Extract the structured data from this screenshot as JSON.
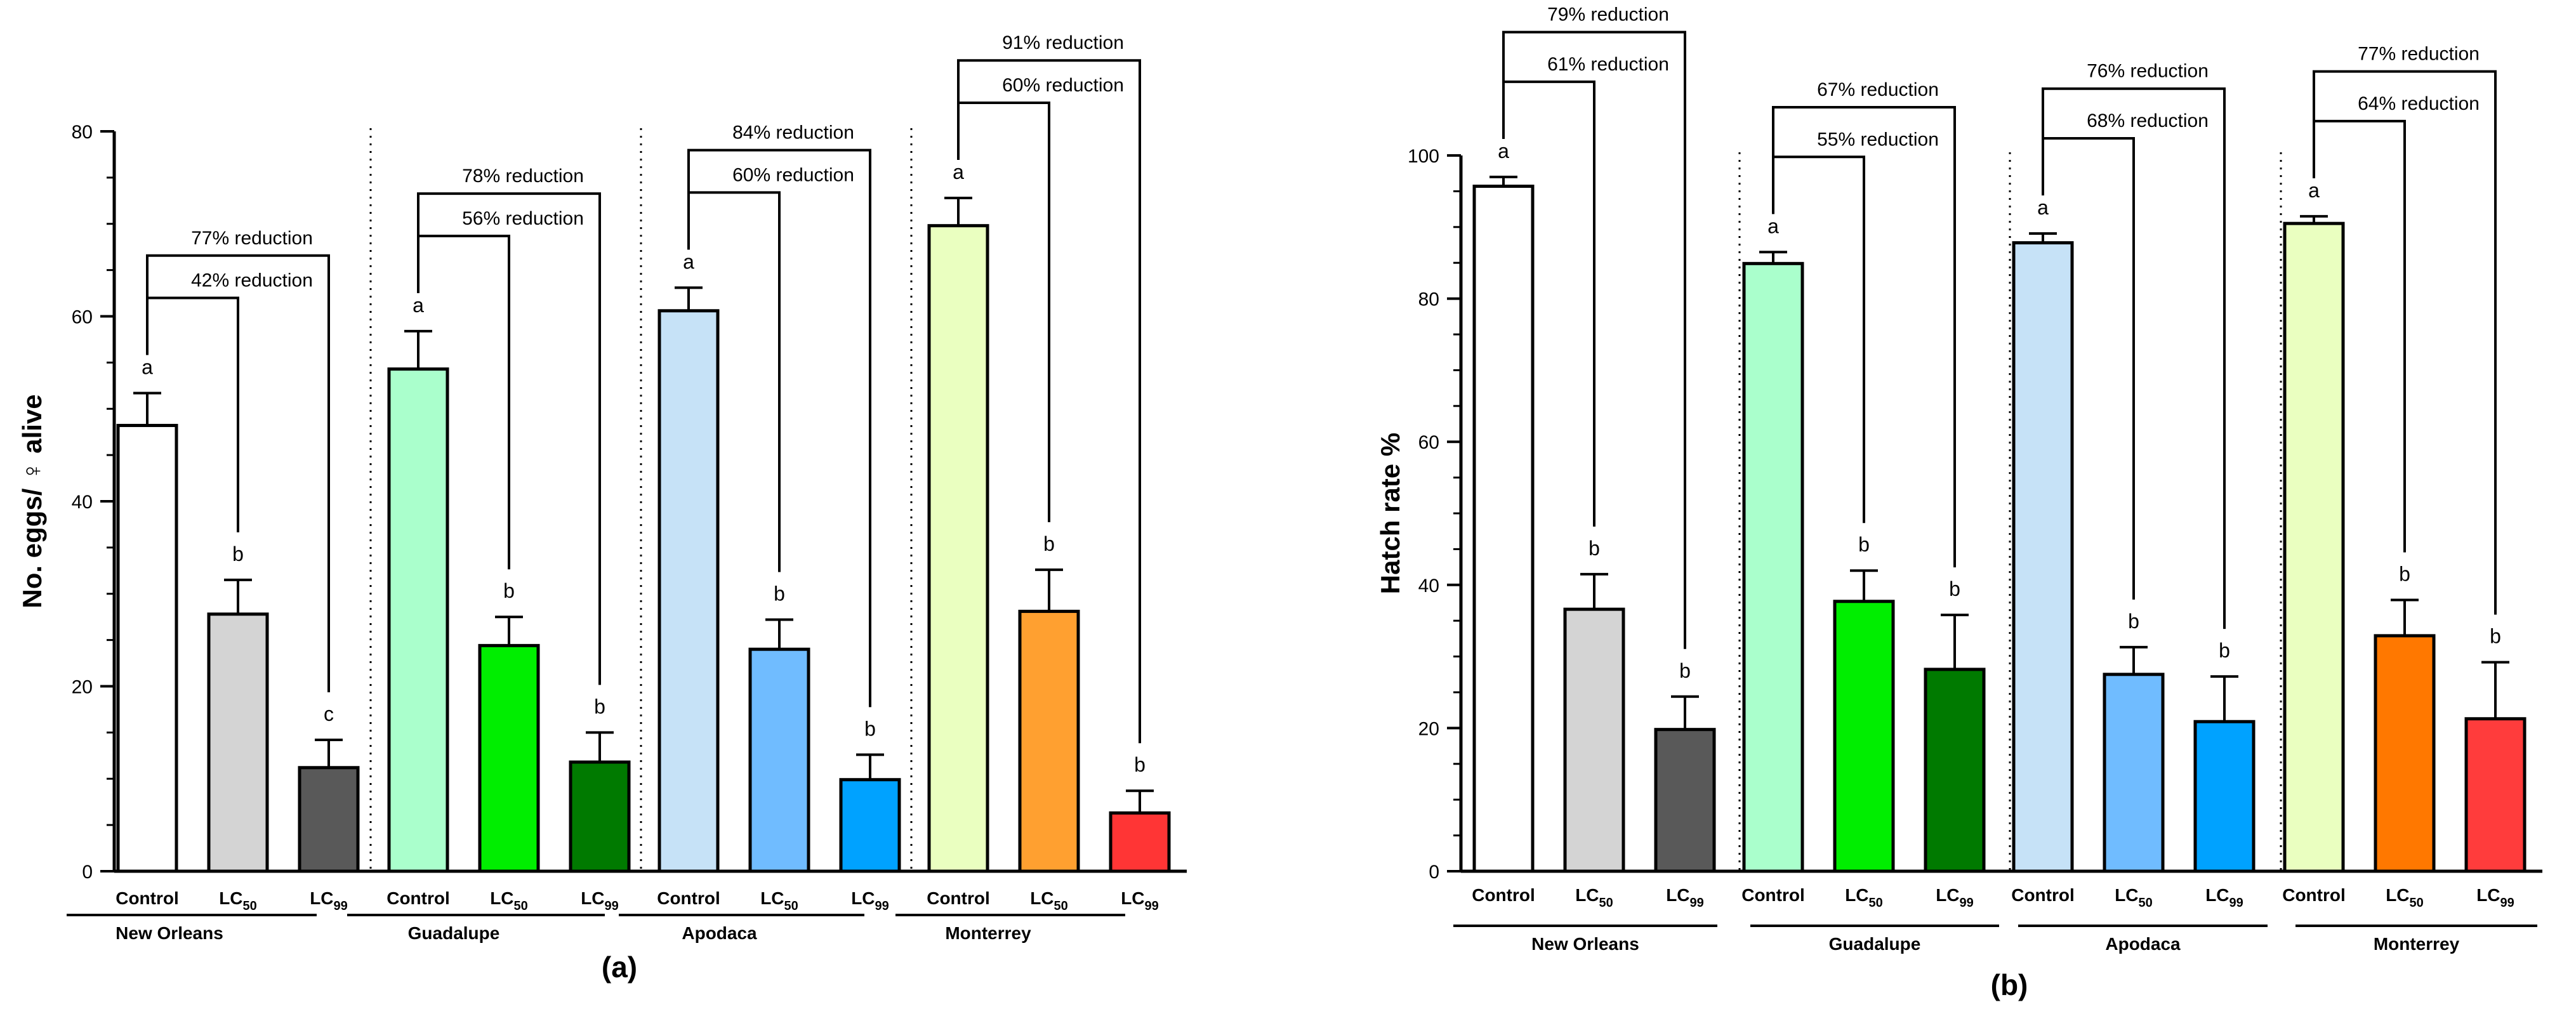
{
  "chart_data": [
    {
      "panel_label": "(a)",
      "type": "bar",
      "ylabel": "No. eggs/ ♀ alive",
      "xlabel": "",
      "ylim": [
        0,
        80
      ],
      "yticks": [
        0,
        20,
        40,
        60,
        80
      ],
      "groups": [
        {
          "name": "New Orleans",
          "bars": [
            {
              "label": "Control",
              "sub": "",
              "value": 48.2,
              "err": 3.5,
              "letter": "a",
              "color": "#ffffff"
            },
            {
              "label": "LC",
              "sub": "50",
              "value": 27.8,
              "err": 3.7,
              "letter": "b",
              "color": "#d4d4d4"
            },
            {
              "label": "LC",
              "sub": "99",
              "value": 11.2,
              "err": 3.0,
              "letter": "c",
              "color": "#595959"
            }
          ],
          "annotations": [
            {
              "text": "42% reduction",
              "to": 1
            },
            {
              "text": "77% reduction",
              "to": 2
            }
          ]
        },
        {
          "name": "Guadalupe",
          "bars": [
            {
              "label": "Control",
              "sub": "",
              "value": 54.3,
              "err": 4.1,
              "letter": "a",
              "color": "#aaffcc"
            },
            {
              "label": "LC",
              "sub": "50",
              "value": 24.4,
              "err": 3.1,
              "letter": "b",
              "color": "#00ee00"
            },
            {
              "label": "LC",
              "sub": "99",
              "value": 11.8,
              "err": 3.2,
              "letter": "b",
              "color": "#007a00"
            }
          ],
          "annotations": [
            {
              "text": "56% reduction",
              "to": 1
            },
            {
              "text": "78% reduction",
              "to": 2
            }
          ]
        },
        {
          "name": "Apodaca",
          "bars": [
            {
              "label": "Control",
              "sub": "",
              "value": 60.6,
              "err": 2.5,
              "letter": "a",
              "color": "#c6e2f7"
            },
            {
              "label": "LC",
              "sub": "50",
              "value": 24.0,
              "err": 3.2,
              "letter": "b",
              "color": "#70bcff"
            },
            {
              "label": "LC",
              "sub": "99",
              "value": 9.9,
              "err": 2.7,
              "letter": "b",
              "color": "#00a2ff"
            }
          ],
          "annotations": [
            {
              "text": "60% reduction",
              "to": 1
            },
            {
              "text": "84% reduction",
              "to": 2
            }
          ]
        },
        {
          "name": "Monterrey",
          "bars": [
            {
              "label": "Control",
              "sub": "",
              "value": 69.8,
              "err": 3.0,
              "letter": "a",
              "color": "#eaffc0"
            },
            {
              "label": "LC",
              "sub": "50",
              "value": 28.1,
              "err": 4.5,
              "letter": "b",
              "color": "#ffa030"
            },
            {
              "label": "LC",
              "sub": "99",
              "value": 6.3,
              "err": 2.4,
              "letter": "b",
              "color": "#ff3535"
            }
          ],
          "annotations": [
            {
              "text": "60% reduction",
              "to": 1
            },
            {
              "text": "91% reduction",
              "to": 2
            }
          ]
        }
      ]
    },
    {
      "panel_label": "(b)",
      "type": "bar",
      "ylabel": "Hatch rate %",
      "xlabel": "",
      "ylim": [
        0,
        100
      ],
      "yticks": [
        0,
        20,
        40,
        60,
        80,
        100
      ],
      "groups": [
        {
          "name": "New Orleans",
          "bars": [
            {
              "label": "Control",
              "sub": "",
              "value": 95.7,
              "err": 1.3,
              "letter": "a",
              "color": "#ffffff"
            },
            {
              "label": "LC",
              "sub": "50",
              "value": 36.6,
              "err": 4.9,
              "letter": "b",
              "color": "#d4d4d4"
            },
            {
              "label": "LC",
              "sub": "99",
              "value": 19.8,
              "err": 4.6,
              "letter": "b",
              "color": "#595959"
            }
          ],
          "annotations": [
            {
              "text": "61% reduction",
              "to": 1
            },
            {
              "text": "79% reduction",
              "to": 2
            }
          ]
        },
        {
          "name": "Guadalupe",
          "bars": [
            {
              "label": "Control",
              "sub": "",
              "value": 84.9,
              "err": 1.6,
              "letter": "a",
              "color": "#aaffcc"
            },
            {
              "label": "LC",
              "sub": "50",
              "value": 37.7,
              "err": 4.3,
              "letter": "b",
              "color": "#00ee00"
            },
            {
              "label": "LC",
              "sub": "99",
              "value": 28.2,
              "err": 7.6,
              "letter": "b",
              "color": "#007a00"
            }
          ],
          "annotations": [
            {
              "text": "55% reduction",
              "to": 1
            },
            {
              "text": "67% reduction",
              "to": 2
            }
          ]
        },
        {
          "name": "Apodaca",
          "bars": [
            {
              "label": "Control",
              "sub": "",
              "value": 87.8,
              "err": 1.3,
              "letter": "a",
              "color": "#c6e2f7"
            },
            {
              "label": "LC",
              "sub": "50",
              "value": 27.5,
              "err": 3.8,
              "letter": "b",
              "color": "#70bcff"
            },
            {
              "label": "LC",
              "sub": "99",
              "value": 20.9,
              "err": 6.3,
              "letter": "b",
              "color": "#00a2ff"
            }
          ],
          "annotations": [
            {
              "text": "68% reduction",
              "to": 1
            },
            {
              "text": "76% reduction",
              "to": 2
            }
          ]
        },
        {
          "name": "Monterrey",
          "bars": [
            {
              "label": "Control",
              "sub": "",
              "value": 90.5,
              "err": 1.0,
              "letter": "a",
              "color": "#eaffc0"
            },
            {
              "label": "LC",
              "sub": "50",
              "value": 32.9,
              "err": 5.0,
              "letter": "b",
              "color": "#ff7800"
            },
            {
              "label": "LC",
              "sub": "99",
              "value": 21.3,
              "err": 7.9,
              "letter": "b",
              "color": "#ff3c3c"
            }
          ],
          "annotations": [
            {
              "text": "64% reduction",
              "to": 1
            },
            {
              "text": "77% reduction",
              "to": 2
            }
          ]
        }
      ]
    }
  ]
}
